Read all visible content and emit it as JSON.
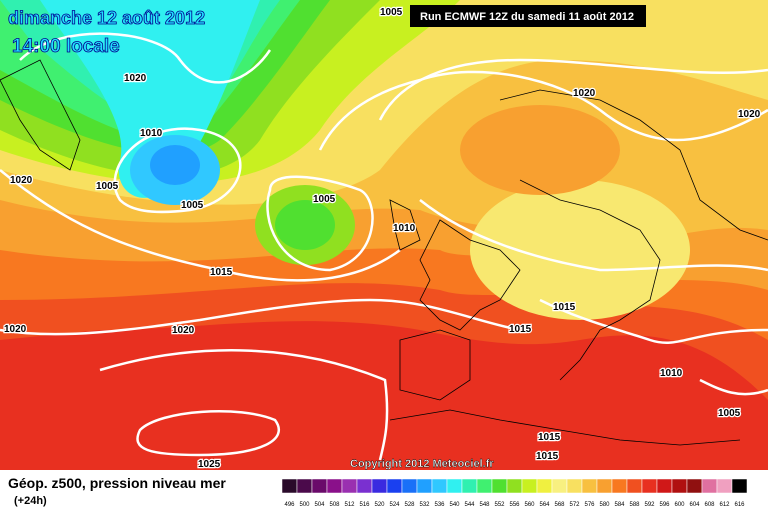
{
  "header": {
    "date": "dimanche 12 août 2012",
    "time": "14:00 locale",
    "run": "Run ECMWF 12Z du samedi 11 août 2012"
  },
  "map": {
    "isobar_labels": [
      "1005",
      "1020",
      "1010",
      "1005",
      "1020",
      "1005",
      "1005",
      "1010",
      "1015",
      "1020",
      "1020",
      "1020",
      "1020",
      "1015",
      "1015",
      "1010",
      "1005",
      "1015",
      "1015",
      "1025"
    ],
    "copyright": "Copyright 2012 Meteociel.fr"
  },
  "footer": {
    "title": "Géop. z500, pression niveau mer",
    "lead": "(+24h)",
    "scale": [
      {
        "label": "496",
        "color": "#2a0a2a"
      },
      {
        "label": "500",
        "color": "#4b0a4b"
      },
      {
        "label": "504",
        "color": "#6a0a6a"
      },
      {
        "label": "508",
        "color": "#8a108a"
      },
      {
        "label": "512",
        "color": "#9a30b0"
      },
      {
        "label": "516",
        "color": "#7a30d0"
      },
      {
        "label": "520",
        "color": "#3a2ae0"
      },
      {
        "label": "524",
        "color": "#1a40f0"
      },
      {
        "label": "528",
        "color": "#1a70f8"
      },
      {
        "label": "532",
        "color": "#20a0ff"
      },
      {
        "label": "536",
        "color": "#30c8ff"
      },
      {
        "label": "540",
        "color": "#30f0f0"
      },
      {
        "label": "544",
        "color": "#30f0b0"
      },
      {
        "label": "548",
        "color": "#40f070"
      },
      {
        "label": "552",
        "color": "#50e030"
      },
      {
        "label": "556",
        "color": "#90e020"
      },
      {
        "label": "560",
        "color": "#c8f020"
      },
      {
        "label": "564",
        "color": "#f0f040"
      },
      {
        "label": "568",
        "color": "#f8f080"
      },
      {
        "label": "572",
        "color": "#f8e060"
      },
      {
        "label": "576",
        "color": "#f8c040"
      },
      {
        "label": "580",
        "color": "#f8a030"
      },
      {
        "label": "584",
        "color": "#f87820"
      },
      {
        "label": "588",
        "color": "#f05020"
      },
      {
        "label": "592",
        "color": "#e83020"
      },
      {
        "label": "596",
        "color": "#d01818"
      },
      {
        "label": "600",
        "color": "#b01010"
      },
      {
        "label": "604",
        "color": "#901010"
      },
      {
        "label": "608",
        "color": "#e070a0"
      },
      {
        "label": "612",
        "color": "#f0a0c0"
      },
      {
        "label": "616",
        "color": "#000000"
      }
    ]
  }
}
